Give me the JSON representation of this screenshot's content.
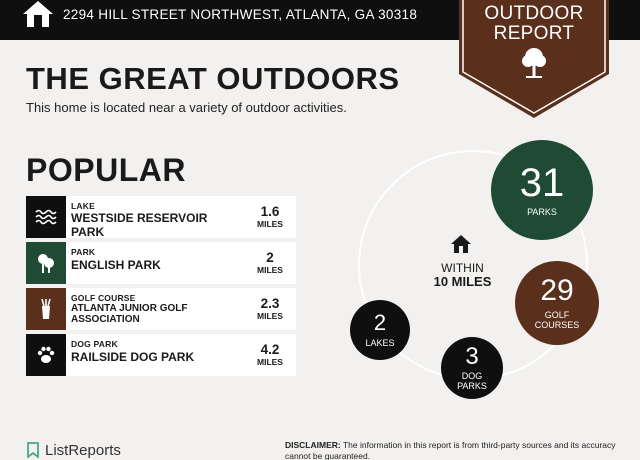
{
  "header": {
    "address": "2294 HILL STREET NORTHWEST, ATLANTA, GA 30318",
    "icon": "home-icon"
  },
  "badge": {
    "line1": "OUTDOOR",
    "line2": "REPORT",
    "icon": "tree-icon",
    "color": "#5a2f1b"
  },
  "main": {
    "title": "THE GREAT OUTDOORS",
    "subtitle": "This home is located near a variety of outdoor activities.",
    "popular_heading": "POPULAR"
  },
  "popular": [
    {
      "category": "Lake",
      "name": "WESTSIDE RESERVOIR PARK",
      "distance": "1.6",
      "unit": "MILES",
      "icon": "water-waves-icon",
      "icon_bg": "#0f0f0f"
    },
    {
      "category": "Park",
      "name": "ENGLISH PARK",
      "distance": "2",
      "unit": "MILES",
      "icon": "tree-park-icon",
      "icon_bg": "#1f4a34"
    },
    {
      "category": "Golf Course",
      "name": "ATLANTA JUNIOR GOLF ASSOCIATION",
      "distance": "2.3",
      "unit": "MILES",
      "icon": "golf-bag-icon",
      "icon_bg": "#5a2f1b"
    },
    {
      "category": "Dog Park",
      "name": "RAILSIDE DOG PARK",
      "distance": "4.2",
      "unit": "MILES",
      "icon": "paw-icon",
      "icon_bg": "#0f0f0f"
    }
  ],
  "summary": {
    "within_label": "WITHIN",
    "within_value": "10 MILES",
    "icon": "home-icon",
    "stats": {
      "parks": {
        "count": "31",
        "label": "PARKS",
        "color": "#1f4a34"
      },
      "golf": {
        "count": "29",
        "label": "GOLF COURSES",
        "color": "#5a2f1b"
      },
      "lakes": {
        "count": "2",
        "label": "LAKES",
        "color": "#0f0f0f"
      },
      "dogs": {
        "count": "3",
        "label": "DOG PARKS",
        "color": "#0f0f0f"
      }
    }
  },
  "footer": {
    "logo_text": "ListReports",
    "disclaimer_label": "DISCLAIMER:",
    "disclaimer_text": "The information in this report is from third-party sources and its accuracy cannot be guaranteed."
  }
}
